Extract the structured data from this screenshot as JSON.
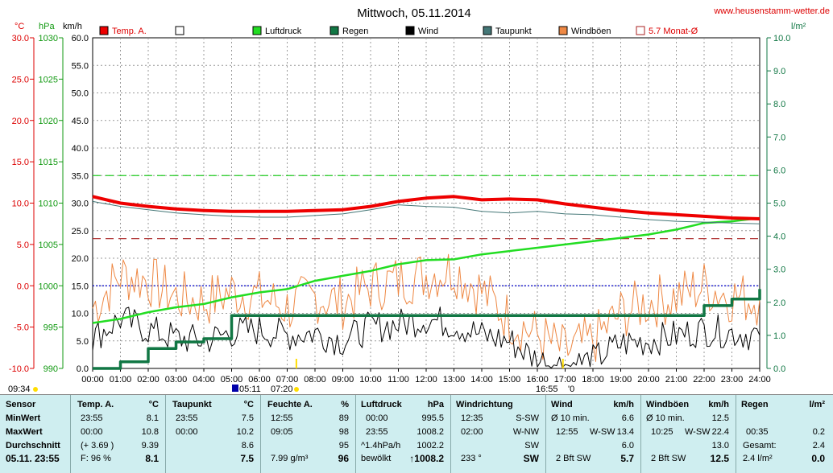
{
  "title": "Mittwoch, 05.11.2014",
  "site": "www.heusenstamm-wetter.de",
  "units": {
    "temp": "°C",
    "press": "hPa",
    "wind": "km/h",
    "rain": "l/m²"
  },
  "legend": [
    {
      "label": "Temp. A.",
      "color": "#ee0000",
      "kind": "box"
    },
    {
      "label": "",
      "color": "#ffffff",
      "kind": "box"
    },
    {
      "label": "Luftdruck",
      "color": "#22dd22",
      "kind": "box"
    },
    {
      "label": "Regen",
      "color": "#117744",
      "kind": "box"
    },
    {
      "label": "Wind",
      "color": "#000000",
      "kind": "box"
    },
    {
      "label": "Taupunkt",
      "color": "#447777",
      "kind": "box"
    },
    {
      "label": "Windböen",
      "color": "#ee8844",
      "kind": "box"
    },
    {
      "label": "5.7 Monat-Ø",
      "color": "#aa2222",
      "kind": "outline"
    }
  ],
  "axes": {
    "temp_ticks": [
      "30.0",
      "25.0",
      "20.0",
      "15.0",
      "10.0",
      "5.0",
      "0.0",
      "-5.0",
      "-10.0"
    ],
    "press_ticks": [
      "1030",
      "1025",
      "1020",
      "1015",
      "1010",
      "1005",
      "1000",
      "995",
      "990"
    ],
    "wind_ticks": [
      "60.0",
      "55.0",
      "50.0",
      "45.0",
      "40.0",
      "35.0",
      "30.0",
      "25.0",
      "20.0",
      "15.0",
      "10.0",
      "5.0",
      "0.0"
    ],
    "rain_ticks": [
      "10.0",
      "9.0",
      "8.0",
      "7.0",
      "6.0",
      "5.0",
      "4.0",
      "3.0",
      "2.0",
      "1.0",
      "0.0"
    ],
    "time_ticks": [
      "00:00",
      "01:00",
      "02:00",
      "03:00",
      "04:00",
      "05:00",
      "06:00",
      "07:00",
      "08:00",
      "09:00",
      "10:00",
      "11:00",
      "12:00",
      "13:00",
      "14:00",
      "15:00",
      "16:00",
      "17:00",
      "18:00",
      "19:00",
      "20:00",
      "21:00",
      "22:00",
      "23:00",
      "24:00"
    ]
  },
  "time_markers": {
    "moonset": "09:34",
    "moonrise_sym": "05:11",
    "sunrise": "07:20",
    "sunset": "16:55",
    "moon2": "'0"
  },
  "chart_data": {
    "type": "line",
    "title": "Mittwoch, 05.11.2014",
    "x_hours": [
      0,
      1,
      2,
      3,
      4,
      5,
      6,
      7,
      8,
      9,
      10,
      11,
      12,
      13,
      14,
      15,
      16,
      17,
      18,
      19,
      20,
      21,
      22,
      23,
      24
    ],
    "series": [
      {
        "name": "Temp. A.",
        "axis": "temp",
        "values": [
          10.8,
          10.0,
          9.6,
          9.3,
          9.1,
          9.0,
          9.0,
          9.0,
          9.1,
          9.2,
          9.6,
          10.2,
          10.6,
          10.8,
          10.4,
          10.5,
          10.4,
          9.9,
          9.5,
          9.1,
          8.8,
          8.6,
          8.4,
          8.2,
          8.1
        ]
      },
      {
        "name": "Taupunkt",
        "axis": "temp",
        "values": [
          10.2,
          9.6,
          9.2,
          8.8,
          8.6,
          8.4,
          8.3,
          8.3,
          8.5,
          8.7,
          9.2,
          9.8,
          9.6,
          9.5,
          9.0,
          8.8,
          9.0,
          8.7,
          8.6,
          8.3,
          8.0,
          7.8,
          7.7,
          7.6,
          7.5
        ]
      },
      {
        "name": "Luftdruck",
        "axis": "press",
        "values": [
          995.5,
          996.0,
          996.8,
          997.4,
          997.8,
          998.6,
          999.2,
          999.6,
          1000.6,
          1001.2,
          1001.8,
          1002.6,
          1003.1,
          1003.2,
          1003.8,
          1004.2,
          1004.6,
          1005.0,
          1005.4,
          1005.8,
          1006.2,
          1006.8,
          1007.6,
          1007.8,
          1008.2
        ]
      },
      {
        "name": "Regen",
        "axis": "rain",
        "values": [
          0.0,
          0.2,
          0.6,
          0.8,
          0.9,
          1.6,
          1.6,
          1.6,
          1.6,
          1.6,
          1.6,
          1.6,
          1.6,
          1.6,
          1.6,
          1.6,
          1.6,
          1.6,
          1.6,
          1.6,
          1.6,
          1.6,
          1.9,
          2.1,
          2.4
        ]
      },
      {
        "name": "Wind",
        "axis": "wind",
        "values": [
          5.5,
          9.0,
          7.0,
          5.5,
          5.0,
          6.5,
          7.0,
          6.0,
          6.5,
          5.0,
          7.5,
          8.0,
          9.0,
          8.0,
          6.0,
          5.0,
          1.5,
          0.5,
          1.5,
          4.5,
          5.0,
          6.0,
          7.0,
          6.5,
          6.0
        ]
      },
      {
        "name": "Windböen",
        "axis": "wind",
        "values": [
          11.0,
          17.0,
          16.0,
          13.0,
          12.0,
          14.0,
          13.0,
          11.0,
          13.0,
          12.0,
          15.0,
          16.0,
          17.0,
          18.0,
          14.0,
          9.0,
          6.0,
          3.0,
          5.0,
          10.0,
          12.0,
          13.0,
          15.0,
          13.0,
          12.5
        ]
      }
    ],
    "reference_lines": [
      {
        "axis": "wind",
        "value": 35.0,
        "color": "#22cc22"
      },
      {
        "axis": "temp",
        "value": 5.7,
        "color": "#aa2222"
      },
      {
        "axis": "temp",
        "value": 0.0,
        "color": "#0000cc"
      }
    ],
    "ylim_temp": [
      -10,
      30
    ],
    "ylim_press": [
      990,
      1030
    ],
    "ylim_wind": [
      0,
      60
    ],
    "ylim_rain": [
      0,
      10
    ]
  },
  "stats": {
    "sensor": {
      "title": "Sensor",
      "min": "MinWert",
      "max": "MaxWert",
      "avg": "Durchschnitt",
      "cur": "05.11. 23:55"
    },
    "temp": {
      "title": "Temp. A.",
      "unit": "°C",
      "min_t": "23:55",
      "min_v": "8.1",
      "max_t": "00:00",
      "max_v": "10.8",
      "avg_t": "(+ 3.69 )",
      "avg_v": "9.39",
      "cur_t": "F: 96 %",
      "cur_v": "8.1"
    },
    "dew": {
      "title": "Taupunkt",
      "unit": "°C",
      "min_t": "23:55",
      "min_v": "7.5",
      "max_t": "00:00",
      "max_v": "10.2",
      "avg_v": "8.6",
      "cur_v": "7.5"
    },
    "hum": {
      "title": "Feuchte A.",
      "unit": "%",
      "min_t": "12:55",
      "min_v": "89",
      "max_t": "09:05",
      "max_v": "98",
      "avg_v": "95",
      "cur_t": "7.99 g/m³",
      "cur_v": "96"
    },
    "press": {
      "title": "Luftdruck",
      "unit": "hPa",
      "min_t": "00:00",
      "min_v": "995.5",
      "max_t": "23:55",
      "max_v": "1008.2",
      "avg_t": "^1.4hPa/h",
      "avg_v": "1002.2",
      "cur_t": "bewölkt",
      "cur_v": "↑1008.2"
    },
    "dir": {
      "title": "Windrichtung",
      "min_t": "12:35",
      "min_v": "S-SW",
      "max_t": "02:00",
      "max_v": "W-NW",
      "avg_v": "SW",
      "cur_t": "233 °",
      "cur_v": "SW"
    },
    "wind": {
      "title": "Wind",
      "unit": "km/h",
      "min_t": "Ø 10 min.",
      "min_v": "6.6",
      "max_t": "12:55",
      "max_d": "W-SW",
      "max_v": "13.4",
      "avg_v": "6.0",
      "cur_t": "2 Bft SW",
      "cur_v": "5.7"
    },
    "gust": {
      "title": "Windböen",
      "unit": "km/h",
      "min_t": "Ø 10 min.",
      "min_v": "12.5",
      "max_t": "10:25",
      "max_d": "W-SW",
      "max_v": "22.4",
      "avg_v": "13.0",
      "cur_t": "2 Bft SW",
      "cur_v": "12.5"
    },
    "rain": {
      "title": "Regen",
      "unit": "l/m²",
      "max_t": "00:35",
      "max_v": "0.2",
      "avg_t": "Gesamt:",
      "avg_v": "2.4",
      "cur_t": "2.4 l/m²",
      "cur_v": "0.0"
    }
  }
}
